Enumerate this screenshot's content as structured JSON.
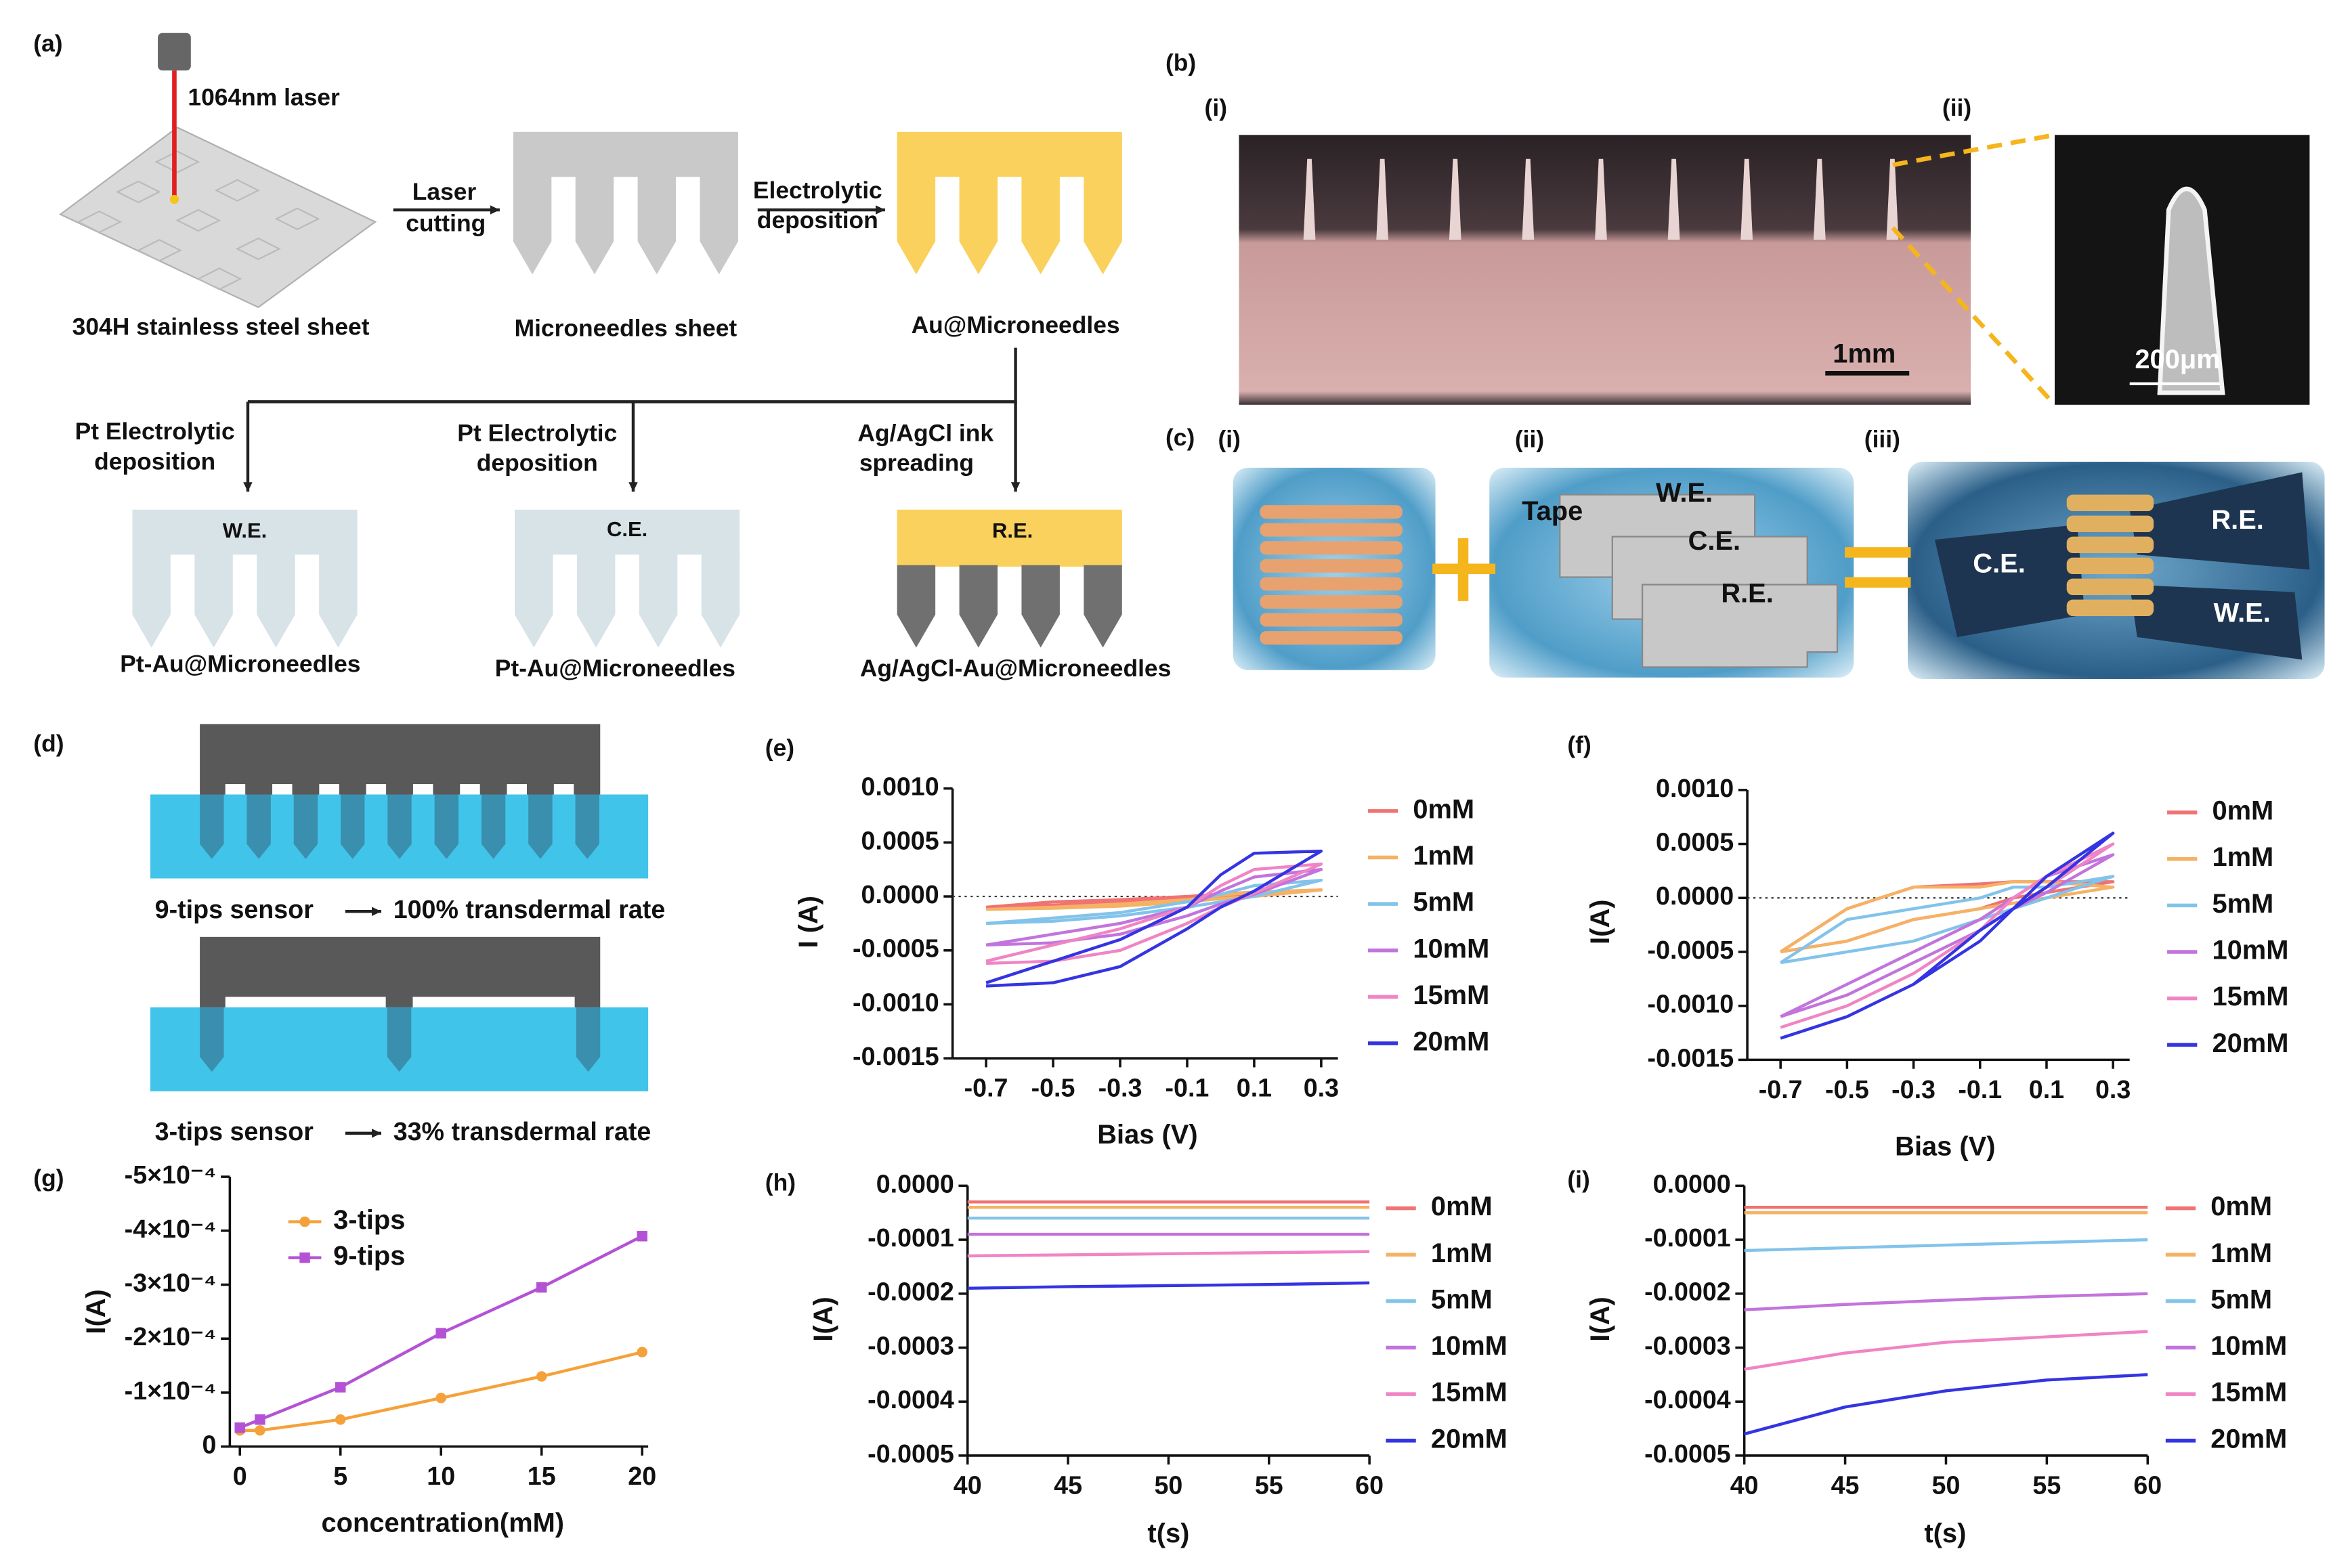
{
  "panel_a": {
    "label": "(a)",
    "laser": "1064nm laser",
    "step1": [
      "Laser",
      "cutting"
    ],
    "step2": [
      "Electrolytic",
      "deposition"
    ],
    "products": [
      "304H stainless steel sheet",
      "Microneedles sheet",
      "Au@Microneedles"
    ],
    "branches": [
      {
        "process": [
          "Pt Electrolytic",
          "deposition"
        ],
        "electrode": "W.E.",
        "product": "Pt-Au@Microneedles"
      },
      {
        "process": [
          "Pt Electrolytic",
          "deposition"
        ],
        "electrode": "C.E.",
        "product": "Pt-Au@Microneedles"
      },
      {
        "process": [
          "Ag/AgCl ink",
          "spreading"
        ],
        "electrode": "R.E.",
        "product": "Ag/AgCl-Au@Microneedles"
      }
    ]
  },
  "panel_b": {
    "label": "(b)",
    "sub": [
      "(i)",
      "(ii)"
    ],
    "scale_bars": [
      "1mm",
      "200μm"
    ]
  },
  "panel_c": {
    "label": "(c)",
    "sub": [
      "(i)",
      "(ii)",
      "(iii)"
    ],
    "parts": [
      "Tape",
      "W.E.",
      "C.E.",
      "R.E."
    ],
    "assembled": [
      "C.E.",
      "R.E.",
      "W.E."
    ]
  },
  "panel_d": {
    "label": "(d)",
    "sensors": [
      {
        "name": "9-tips sensor",
        "rate": "100% transdermal rate"
      },
      {
        "name": "3-tips sensor",
        "rate": "33% transdermal rate"
      }
    ]
  },
  "chart_data": [
    {
      "type": "line",
      "label": "(e)",
      "xlabel": "Bias (V)",
      "ylabel": "I (A)",
      "legend": "right",
      "zero_line": true,
      "x": [
        -0.7,
        -0.5,
        -0.3,
        -0.1,
        0,
        0.1,
        0.3,
        0.1,
        0,
        -0.1,
        -0.3,
        -0.5,
        -0.7
      ],
      "xlim": [
        -0.8,
        0.35
      ],
      "xticks": [
        -0.7,
        -0.5,
        -0.3,
        -0.1,
        0.1,
        0.3
      ],
      "ylim": [
        -0.0015,
        0.001
      ],
      "yticks": [
        {
          "value": 0.001,
          "label": "0.0010"
        },
        {
          "value": 0.0005,
          "label": "0.0005"
        },
        {
          "value": 0,
          "label": "0.0000"
        },
        {
          "value": -0.0005,
          "label": "-0.0005"
        },
        {
          "value": -0.001,
          "label": "-0.0010"
        },
        {
          "value": -0.0015,
          "label": "-0.0015"
        }
      ],
      "series": [
        {
          "name": "0mM",
          "color": "#f07272",
          "values": [
            -0.0001,
            -5e-05,
            -3e-05,
            0,
            2e-05,
            4e-05,
            6e-05,
            2e-05,
            0,
            -2e-05,
            -5e-05,
            -8e-05,
            -0.0001
          ]
        },
        {
          "name": "1mM",
          "color": "#f5b264",
          "values": [
            -0.00012,
            -0.0001,
            -7e-05,
            -3e-05,
            1e-05,
            4e-05,
            6e-05,
            0,
            -2e-05,
            -5e-05,
            -9e-05,
            -0.00011,
            -0.00012
          ]
        },
        {
          "name": "5mM",
          "color": "#82c3ea",
          "values": [
            -0.00025,
            -0.0002,
            -0.00015,
            -5e-05,
            2e-05,
            0.0001,
            0.00015,
            0,
            -5e-05,
            -0.0001,
            -0.00018,
            -0.00023,
            -0.00025
          ]
        },
        {
          "name": "10mM",
          "color": "#c274dc",
          "values": [
            -0.00045,
            -0.00035,
            -0.00025,
            -0.0001,
            5e-05,
            0.00018,
            0.00025,
            2e-05,
            -7e-05,
            -0.00018,
            -0.00035,
            -0.00043,
            -0.00045
          ]
        },
        {
          "name": "15mM",
          "color": "#f084c4",
          "values": [
            -0.0006,
            -0.00045,
            -0.0003,
            -0.0001,
            0.0001,
            0.00025,
            0.0003,
            3e-05,
            -0.0001,
            -0.00025,
            -0.0005,
            -0.0006,
            -0.00062
          ]
        },
        {
          "name": "20mM",
          "color": "#3434e2",
          "values": [
            -0.0008,
            -0.0006,
            -0.0004,
            -0.0001,
            0.0002,
            0.0004,
            0.00042,
            5e-05,
            -0.0001,
            -0.0003,
            -0.00065,
            -0.0008,
            -0.00083
          ]
        }
      ]
    },
    {
      "type": "line",
      "label": "(f)",
      "xlabel": "Bias (V)",
      "ylabel": "I(A)",
      "legend": "right",
      "zero_line": true,
      "x": [
        -0.7,
        -0.5,
        -0.3,
        -0.1,
        0,
        0.1,
        0.3,
        0.1,
        0,
        -0.1,
        -0.3,
        -0.5,
        -0.7
      ],
      "xlim": [
        -0.8,
        0.35
      ],
      "xticks": [
        -0.7,
        -0.5,
        -0.3,
        -0.1,
        0.1,
        0.3
      ],
      "ylim": [
        -0.0015,
        0.001
      ],
      "yticks": [
        {
          "value": 0.001,
          "label": "0.0010"
        },
        {
          "value": 0.0005,
          "label": "0.0005"
        },
        {
          "value": 0,
          "label": "0.0000"
        },
        {
          "value": -0.0005,
          "label": "-0.0005"
        },
        {
          "value": -0.001,
          "label": "-0.0010"
        },
        {
          "value": -0.0015,
          "label": "-0.0015"
        }
      ],
      "series": [
        {
          "name": "0mM",
          "color": "#f07272",
          "values": [
            -0.0005,
            -0.0001,
            0.0001,
            0.00013,
            0.00015,
            0.00015,
            0.00015,
            5e-05,
            0,
            -0.0001,
            -0.0002,
            -0.0004,
            -0.0005
          ]
        },
        {
          "name": "1mM",
          "color": "#f5b264",
          "values": [
            -0.0005,
            -0.0001,
            0.0001,
            0.0001,
            0.00015,
            0.00015,
            0.0001,
            0,
            -5e-05,
            -0.0001,
            -0.0002,
            -0.0004,
            -0.0005
          ]
        },
        {
          "name": "5mM",
          "color": "#82c3ea",
          "values": [
            -0.0006,
            -0.0002,
            -0.0001,
            0,
            0.0001,
            0.0001,
            0.0002,
            0,
            -0.0001,
            -0.0002,
            -0.0004,
            -0.0005,
            -0.0006
          ]
        },
        {
          "name": "10mM",
          "color": "#c274dc",
          "values": [
            -0.0011,
            -0.0008,
            -0.0005,
            -0.0002,
            0,
            0.0002,
            0.0004,
            5e-05,
            -0.0001,
            -0.0003,
            -0.0006,
            -0.0009,
            -0.0011
          ]
        },
        {
          "name": "15mM",
          "color": "#f084c4",
          "values": [
            -0.0012,
            -0.001,
            -0.0007,
            -0.0003,
            0,
            0.0002,
            0.0005,
            0.0001,
            -0.0001,
            -0.0003,
            -0.0007,
            -0.001,
            -0.0012
          ]
        },
        {
          "name": "20mM",
          "color": "#3434e2",
          "values": [
            -0.0013,
            -0.0011,
            -0.0008,
            -0.0004,
            -0.0001,
            0.0002,
            0.0006,
            0.0001,
            -0.0001,
            -0.0003,
            -0.0008,
            -0.0011,
            -0.0013
          ]
        }
      ]
    },
    {
      "type": "line",
      "label": "(g)",
      "xlabel": "concentration(mM)",
      "ylabel": "I(A)",
      "legend": "upper left",
      "markers": true,
      "x": [
        0,
        1,
        5,
        10,
        15,
        20
      ],
      "xlim": [
        -0.5,
        20.3
      ],
      "xticks": [
        0,
        5,
        10,
        15,
        20
      ],
      "ylim": [
        0,
        -0.0005
      ],
      "yticks": [
        0,
        {
          "value": -0.0001,
          "label": "-1×10⁻⁴"
        },
        {
          "value": -0.0002,
          "label": "-2×10⁻⁴"
        },
        {
          "value": -0.0003,
          "label": "-3×10⁻⁴"
        },
        {
          "value": -0.0004,
          "label": "-4×10⁻⁴"
        },
        {
          "value": -0.0005,
          "label": "-5×10⁻⁴"
        }
      ],
      "series": [
        {
          "name": "3-tips",
          "color": "#f5a13a",
          "marker": "circle",
          "values": [
            -3e-05,
            -3e-05,
            -5e-05,
            -9e-05,
            -0.00013,
            -0.000175
          ]
        },
        {
          "name": "9-tips",
          "color": "#b452d6",
          "marker": "square",
          "values": [
            -3.5e-05,
            -5e-05,
            -0.00011,
            -0.00021,
            -0.000295,
            -0.00039
          ]
        }
      ]
    },
    {
      "type": "line",
      "label": "(h)",
      "xlabel": "t(s)",
      "ylabel": "I(A)",
      "legend": "right",
      "x": [
        40,
        45,
        50,
        55,
        60
      ],
      "xlim": [
        40,
        60
      ],
      "xticks": [
        40,
        45,
        50,
        55,
        60
      ],
      "ylim": [
        -0.0005,
        0
      ],
      "yticks": [
        {
          "value": 0,
          "label": "0.0000"
        },
        {
          "value": -0.0001,
          "label": "-0.0001"
        },
        {
          "value": -0.0002,
          "label": "-0.0002"
        },
        {
          "value": -0.0003,
          "label": "-0.0003"
        },
        {
          "value": -0.0004,
          "label": "-0.0004"
        },
        {
          "value": -0.0005,
          "label": "-0.0005"
        }
      ],
      "series": [
        {
          "name": "0mM",
          "color": "#f07272",
          "values": [
            -3e-05,
            -3e-05,
            -3e-05,
            -3e-05,
            -3e-05
          ]
        },
        {
          "name": "1mM",
          "color": "#f5b264",
          "values": [
            -4e-05,
            -4e-05,
            -4e-05,
            -4e-05,
            -4e-05
          ]
        },
        {
          "name": "5mM",
          "color": "#82c3ea",
          "values": [
            -6e-05,
            -6e-05,
            -6e-05,
            -6e-05,
            -6e-05
          ]
        },
        {
          "name": "10mM",
          "color": "#c274dc",
          "values": [
            -9e-05,
            -9e-05,
            -9e-05,
            -9e-05,
            -9e-05
          ]
        },
        {
          "name": "15mM",
          "color": "#f084c4",
          "values": [
            -0.00013,
            -0.000128,
            -0.000126,
            -0.000124,
            -0.000122
          ]
        },
        {
          "name": "20mM",
          "color": "#3434e2",
          "values": [
            -0.00019,
            -0.000187,
            -0.000185,
            -0.000183,
            -0.00018
          ]
        }
      ]
    },
    {
      "type": "line",
      "label": "(i)",
      "xlabel": "t(s)",
      "ylabel": "I(A)",
      "legend": "right",
      "x": [
        40,
        45,
        50,
        55,
        60
      ],
      "xlim": [
        40,
        60
      ],
      "xticks": [
        40,
        45,
        50,
        55,
        60
      ],
      "ylim": [
        -0.0005,
        0
      ],
      "yticks": [
        {
          "value": 0,
          "label": "0.0000"
        },
        {
          "value": -0.0001,
          "label": "-0.0001"
        },
        {
          "value": -0.0002,
          "label": "-0.0002"
        },
        {
          "value": -0.0003,
          "label": "-0.0003"
        },
        {
          "value": -0.0004,
          "label": "-0.0004"
        },
        {
          "value": -0.0005,
          "label": "-0.0005"
        }
      ],
      "series": [
        {
          "name": "0mM",
          "color": "#f07272",
          "values": [
            -4e-05,
            -4e-05,
            -4e-05,
            -4e-05,
            -4e-05
          ]
        },
        {
          "name": "1mM",
          "color": "#f5b264",
          "values": [
            -5e-05,
            -5e-05,
            -5e-05,
            -5e-05,
            -5e-05
          ]
        },
        {
          "name": "5mM",
          "color": "#82c3ea",
          "values": [
            -0.00012,
            -0.000115,
            -0.00011,
            -0.000105,
            -0.0001
          ]
        },
        {
          "name": "10mM",
          "color": "#c274dc",
          "values": [
            -0.00023,
            -0.00022,
            -0.000212,
            -0.000205,
            -0.0002
          ]
        },
        {
          "name": "15mM",
          "color": "#f084c4",
          "values": [
            -0.00034,
            -0.00031,
            -0.00029,
            -0.00028,
            -0.00027
          ]
        },
        {
          "name": "20mM",
          "color": "#3434e2",
          "values": [
            -0.00046,
            -0.00041,
            -0.00038,
            -0.00036,
            -0.00035
          ]
        }
      ]
    }
  ]
}
